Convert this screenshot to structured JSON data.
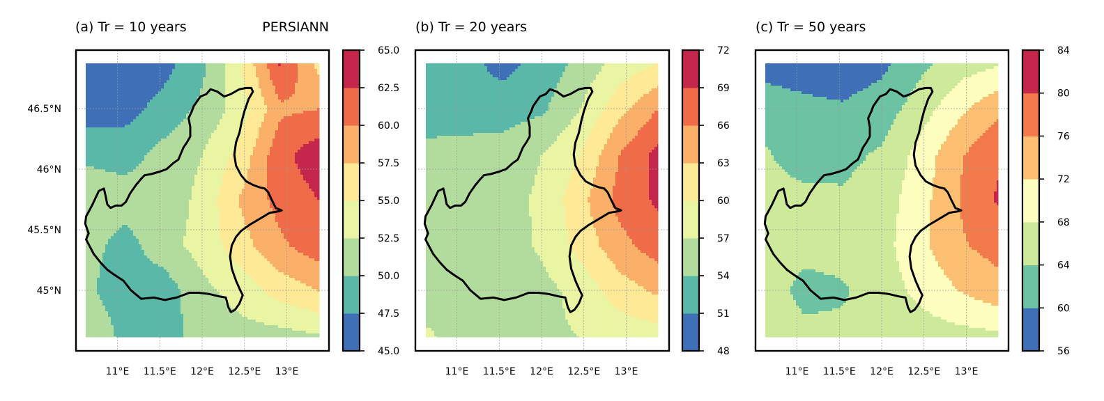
{
  "figure": {
    "source_label": "PERSIANN"
  },
  "chart_data": [
    {
      "type": "contour_map",
      "title": "(a) Tr = 10 years",
      "xticks": [
        "11°E",
        "11.5°E",
        "12°E",
        "12.5°E",
        "13°E"
      ],
      "yticks": [
        "45°N",
        "45.5°N",
        "46°N",
        "46.5°N"
      ],
      "xlim": [
        10.62,
        13.4
      ],
      "ylim": [
        44.62,
        46.88
      ],
      "colorbar": {
        "levels": [
          45.0,
          47.5,
          50.0,
          52.5,
          55.0,
          57.5,
          60.0,
          62.5,
          65.0
        ],
        "tick_labels": [
          "45.0",
          "47.5",
          "50.0",
          "52.5",
          "55.0",
          "57.5",
          "60.0",
          "62.5",
          "65.0"
        ],
        "colors": [
          "#3f6fb6",
          "#5ab8a8",
          "#b2dc9e",
          "#e9f5a2",
          "#fde996",
          "#fbb069",
          "#f06c48",
          "#c4264c"
        ]
      },
      "field": {
        "grid_x": [
          10.62,
          11.08,
          11.54,
          12.0,
          12.46,
          12.93,
          13.4
        ],
        "grid_y": [
          46.88,
          46.5,
          46.13,
          45.75,
          45.38,
          45.0,
          44.62
        ],
        "values": [
          [
            45.5,
            45.5,
            46.5,
            49.5,
            55.0,
            62.8,
            56.5
          ],
          [
            46.0,
            46.5,
            48.5,
            50.5,
            53.8,
            59.5,
            60.0
          ],
          [
            49.5,
            49.0,
            50.8,
            52.5,
            56.0,
            61.8,
            64.0
          ],
          [
            51.5,
            51.2,
            51.0,
            53.2,
            57.8,
            61.0,
            62.5
          ],
          [
            51.0,
            49.0,
            51.5,
            53.5,
            56.5,
            59.5,
            61.5
          ],
          [
            50.5,
            48.5,
            48.5,
            51.8,
            53.5,
            56.0,
            57.5
          ],
          [
            52.6,
            49.2,
            49.0,
            51.0,
            51.5,
            51.5,
            52.2
          ]
        ]
      }
    },
    {
      "type": "contour_map",
      "title": "(b) Tr = 20 years",
      "xticks": [
        "11°E",
        "11.5°E",
        "12°E",
        "12.5°E",
        "13°E"
      ],
      "yticks": [],
      "xlim": [
        10.62,
        13.4
      ],
      "ylim": [
        44.62,
        46.88
      ],
      "colorbar": {
        "levels": [
          48,
          51,
          54,
          57,
          60,
          63,
          66,
          69,
          72
        ],
        "tick_labels": [
          "48",
          "51",
          "54",
          "57",
          "60",
          "63",
          "66",
          "69",
          "72"
        ],
        "colors": [
          "#3f6fb6",
          "#5ab8a8",
          "#b2dc9e",
          "#e9f5a2",
          "#fde996",
          "#fbb069",
          "#f06c48",
          "#c4264c"
        ]
      },
      "field": {
        "grid_x": [
          10.62,
          11.08,
          11.54,
          12.0,
          12.46,
          12.93,
          13.4
        ],
        "grid_y": [
          46.88,
          46.5,
          46.13,
          45.75,
          45.38,
          45.0,
          44.62
        ],
        "values": [
          [
            52.0,
            52.0,
            50.0,
            52.0,
            55.0,
            58.0,
            60.0
          ],
          [
            53.0,
            52.0,
            52.5,
            53.5,
            57.0,
            62.0,
            66.0
          ],
          [
            54.5,
            55.5,
            55.5,
            57.0,
            60.0,
            66.0,
            70.0
          ],
          [
            56.5,
            56.5,
            56.0,
            57.5,
            62.0,
            67.0,
            69.5
          ],
          [
            55.5,
            55.0,
            55.5,
            57.5,
            61.0,
            65.0,
            67.5
          ],
          [
            55.5,
            55.0,
            54.5,
            56.0,
            58.0,
            61.5,
            63.5
          ],
          [
            57.5,
            55.8,
            55.5,
            56.5,
            57.0,
            58.0,
            58.5
          ]
        ]
      }
    },
    {
      "type": "contour_map",
      "title": "(c) Tr = 50 years",
      "xticks": [
        "11°E",
        "11.5°E",
        "12°E",
        "12.5°E",
        "13°E"
      ],
      "yticks": [],
      "xlim": [
        10.62,
        13.4
      ],
      "ylim": [
        44.62,
        46.88
      ],
      "colorbar": {
        "levels": [
          56,
          60,
          64,
          68,
          72,
          76,
          80,
          84
        ],
        "tick_labels": [
          "56",
          "60",
          "64",
          "68",
          "72",
          "76",
          "80",
          "84"
        ],
        "colors": [
          "#3f6fb6",
          "#6cc3a3",
          "#cde99a",
          "#fefebe",
          "#fdbf72",
          "#f37a4a",
          "#c4264c"
        ]
      },
      "field": {
        "grid_x": [
          10.62,
          11.08,
          11.54,
          12.0,
          12.46,
          12.93,
          13.4
        ],
        "grid_y": [
          46.88,
          46.5,
          46.13,
          45.75,
          45.38,
          45.0,
          44.62
        ],
        "values": [
          [
            58.5,
            58.0,
            57.5,
            59.0,
            63.0,
            66.0,
            67.5
          ],
          [
            62.0,
            61.0,
            60.5,
            62.0,
            66.0,
            71.0,
            75.0
          ],
          [
            64.5,
            61.5,
            63.0,
            64.5,
            69.5,
            75.5,
            79.5
          ],
          [
            66.0,
            65.5,
            64.5,
            66.0,
            70.5,
            76.0,
            80.5
          ],
          [
            65.5,
            65.5,
            65.5,
            66.5,
            71.0,
            75.5,
            77.5
          ],
          [
            66.5,
            62.5,
            63.5,
            66.0,
            69.0,
            72.0,
            74.5
          ],
          [
            67.5,
            65.5,
            65.0,
            65.5,
            66.0,
            66.5,
            67.0
          ]
        ]
      }
    }
  ]
}
